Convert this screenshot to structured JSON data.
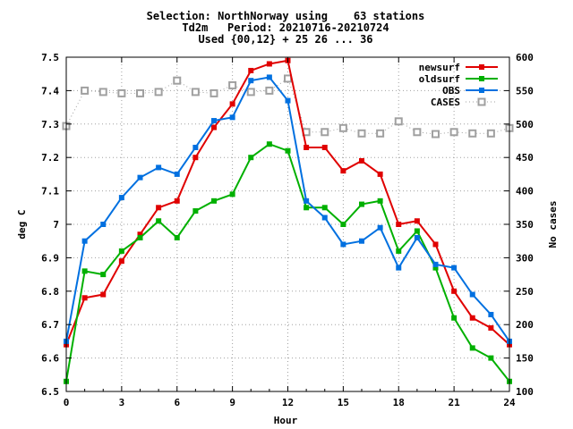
{
  "chart_data": {
    "type": "line",
    "title_lines": [
      "Selection: NorthNorway using    63 stations",
      "Td2m   Period: 20210716-20210724",
      "Used {00,12} + 25 26 ... 36"
    ],
    "xlabel": "Hour",
    "ylabel": "deg C",
    "y2label": "No cases",
    "xlim": [
      0,
      24
    ],
    "ylim": [
      6.5,
      7.5
    ],
    "y2lim": [
      100,
      600
    ],
    "x_ticks": [
      0,
      3,
      6,
      9,
      12,
      15,
      18,
      21,
      24
    ],
    "x_tick_labels": [
      "0",
      "3",
      "6",
      "9",
      "12",
      "15",
      "18",
      "21",
      "24"
    ],
    "y_ticks": [
      6.5,
      6.6,
      6.7,
      6.8,
      6.9,
      7.0,
      7.1,
      7.2,
      7.3,
      7.4,
      7.5
    ],
    "y_tick_labels": [
      "6.5",
      "6.6",
      "6.7",
      "6.8",
      "6.9",
      "7",
      "7.1",
      "7.2",
      "7.3",
      "7.4",
      "7.5"
    ],
    "y2_ticks": [
      100,
      150,
      200,
      250,
      300,
      350,
      400,
      450,
      500,
      550,
      600
    ],
    "y2_tick_labels": [
      "100",
      "150",
      "200",
      "250",
      "300",
      "350",
      "400",
      "450",
      "500",
      "550",
      "600"
    ],
    "grid": true,
    "legend_position": "top-right",
    "x": [
      0,
      1,
      2,
      3,
      4,
      5,
      6,
      7,
      8,
      9,
      10,
      11,
      12,
      13,
      14,
      15,
      16,
      17,
      18,
      19,
      20,
      21,
      22,
      23,
      24
    ],
    "series": [
      {
        "name": "newsurf",
        "axis": "left",
        "color": "#e00000",
        "marker": "filled-square",
        "values": [
          6.64,
          6.78,
          6.79,
          6.89,
          6.97,
          7.05,
          7.07,
          7.2,
          7.29,
          7.36,
          7.46,
          7.48,
          7.49,
          7.23,
          7.23,
          7.16,
          7.19,
          7.15,
          7.0,
          7.01,
          6.94,
          6.8,
          6.72,
          6.69,
          6.64
        ]
      },
      {
        "name": "oldsurf",
        "axis": "left",
        "color": "#00b000",
        "marker": "filled-square",
        "values": [
          6.53,
          6.86,
          6.85,
          6.92,
          6.96,
          7.01,
          6.96,
          7.04,
          7.07,
          7.09,
          7.2,
          7.24,
          7.22,
          7.05,
          7.05,
          7.0,
          7.06,
          7.07,
          6.92,
          6.98,
          6.87,
          6.72,
          6.63,
          6.6,
          6.53
        ]
      },
      {
        "name": "OBS",
        "axis": "left",
        "color": "#0070e0",
        "marker": "filled-square",
        "values": [
          6.65,
          6.95,
          7.0,
          7.08,
          7.14,
          7.17,
          7.15,
          7.23,
          7.31,
          7.32,
          7.43,
          7.44,
          7.37,
          7.07,
          7.02,
          6.94,
          6.95,
          6.99,
          6.87,
          6.96,
          6.88,
          6.87,
          6.79,
          6.73,
          6.65
        ]
      },
      {
        "name": "CASES",
        "axis": "right",
        "color": "#a0a0a0",
        "marker": "open-square",
        "dashed": true,
        "values": [
          497,
          550,
          548,
          546,
          546,
          548,
          565,
          548,
          546,
          558,
          548,
          550,
          568,
          488,
          488,
          494,
          486,
          486,
          504,
          488,
          485,
          488,
          486,
          486,
          494
        ]
      }
    ]
  }
}
